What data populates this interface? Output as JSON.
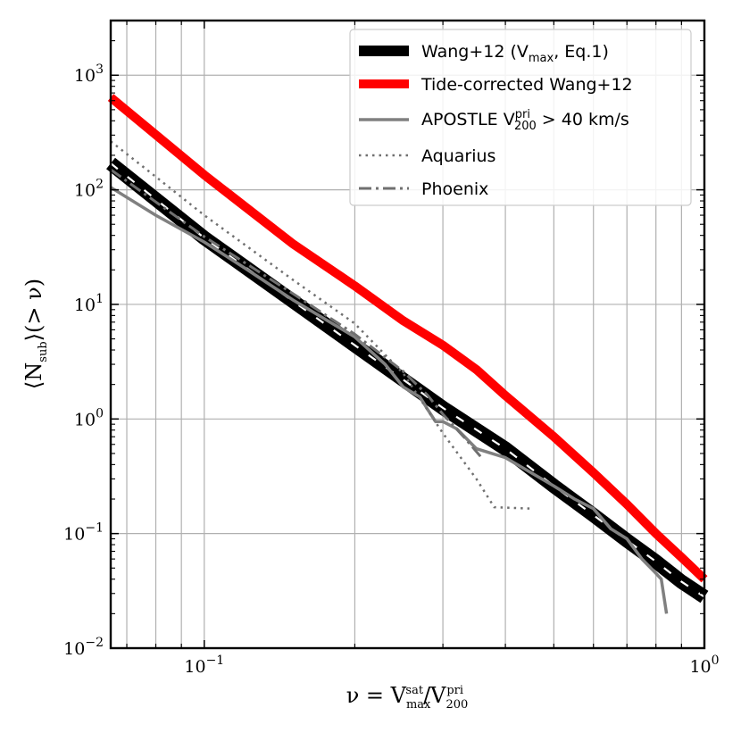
{
  "chart_data": {
    "type": "line",
    "title": "",
    "xscale": "log",
    "yscale": "log",
    "xlim": [
      0.065,
      1.0
    ],
    "ylim": [
      0.01,
      3000
    ],
    "xlabel": {
      "lhs": "ν = V",
      "sub1": "max",
      "sup1": "sat",
      "slash": "/V",
      "sub2": "200",
      "sup2": "pri"
    },
    "ylabel": {
      "open": "⟨N",
      "sub": "sub",
      "close": "⟩(> ν)"
    },
    "x_major_ticks": [
      {
        "value": 0.1,
        "base": "10",
        "exp": "−1"
      },
      {
        "value": 1.0,
        "base": "10",
        "exp": "0"
      }
    ],
    "x_minor_ticks": [
      0.07,
      0.08,
      0.09,
      0.2,
      0.3,
      0.4,
      0.5,
      0.6,
      0.7,
      0.8,
      0.9
    ],
    "y_major_ticks": [
      {
        "value": 0.01,
        "base": "10",
        "exp": "−2"
      },
      {
        "value": 0.1,
        "base": "10",
        "exp": "−1"
      },
      {
        "value": 1,
        "base": "10",
        "exp": "0"
      },
      {
        "value": 10,
        "base": "10",
        "exp": "1"
      },
      {
        "value": 100,
        "base": "10",
        "exp": "2"
      },
      {
        "value": 1000,
        "base": "10",
        "exp": "3"
      }
    ],
    "legend_position": "top-right",
    "series": [
      {
        "name": "Wang+12",
        "legend": {
          "text": "Wang+12 (V",
          "sub": "max",
          "tail": ", Eq.1)"
        },
        "color": "#000000",
        "style": "band-dashed",
        "x": [
          0.065,
          0.1,
          0.2,
          0.3,
          0.4,
          0.5,
          0.6,
          0.7,
          0.8,
          0.9,
          1.0
        ],
        "values": [
          170,
          38,
          4.4,
          1.25,
          0.55,
          0.26,
          0.145,
          0.087,
          0.057,
          0.038,
          0.028
        ]
      },
      {
        "name": "Tide-corrected Wang+12",
        "legend": {
          "text": "Tide-corrected Wang+12"
        },
        "color": "#ff0000",
        "style": "solid-thick",
        "x": [
          0.065,
          0.1,
          0.15,
          0.2,
          0.25,
          0.3,
          0.35,
          0.4,
          0.5,
          0.6,
          0.7,
          0.8,
          0.9,
          1.0
        ],
        "values": [
          640,
          135,
          34,
          14.5,
          7.2,
          4.4,
          2.7,
          1.6,
          0.7,
          0.34,
          0.18,
          0.1,
          0.062,
          0.04
        ]
      },
      {
        "name": "APOSTLE",
        "legend": {
          "text": "APOSTLE V",
          "sub": "200",
          "sup": "pri",
          "tail": " > 40 km/s"
        },
        "color": "#808080",
        "style": "solid",
        "x": [
          0.065,
          0.08,
          0.1,
          0.12,
          0.15,
          0.2,
          0.23,
          0.25,
          0.27,
          0.28,
          0.29,
          0.3,
          0.32,
          0.35,
          0.4,
          0.45,
          0.5,
          0.55,
          0.6,
          0.65,
          0.7,
          0.75,
          0.8,
          0.82,
          0.84
        ],
        "values": [
          105,
          60,
          35,
          21,
          11,
          5.2,
          3.0,
          1.9,
          1.55,
          1.2,
          0.95,
          0.95,
          0.82,
          0.55,
          0.46,
          0.34,
          0.26,
          0.2,
          0.165,
          0.11,
          0.09,
          0.06,
          0.045,
          0.04,
          0.02
        ]
      },
      {
        "name": "Aquarius",
        "legend": {
          "text": "Aquarius"
        },
        "color": "#707070",
        "style": "dotted",
        "x": [
          0.065,
          0.08,
          0.1,
          0.15,
          0.2,
          0.25,
          0.3,
          0.35,
          0.38,
          0.45
        ],
        "values": [
          265,
          130,
          60,
          16.5,
          6.8,
          2.5,
          0.75,
          0.3,
          0.17,
          0.165
        ]
      },
      {
        "name": "Phoenix",
        "legend": {
          "text": "Phoenix"
        },
        "color": "#707070",
        "style": "dashdot",
        "x": [
          0.065,
          0.1,
          0.15,
          0.2,
          0.25,
          0.28,
          0.3,
          0.33,
          0.36
        ],
        "values": [
          150,
          39,
          12.5,
          5.5,
          2.6,
          1.6,
          1.1,
          0.7,
          0.45
        ]
      }
    ]
  }
}
